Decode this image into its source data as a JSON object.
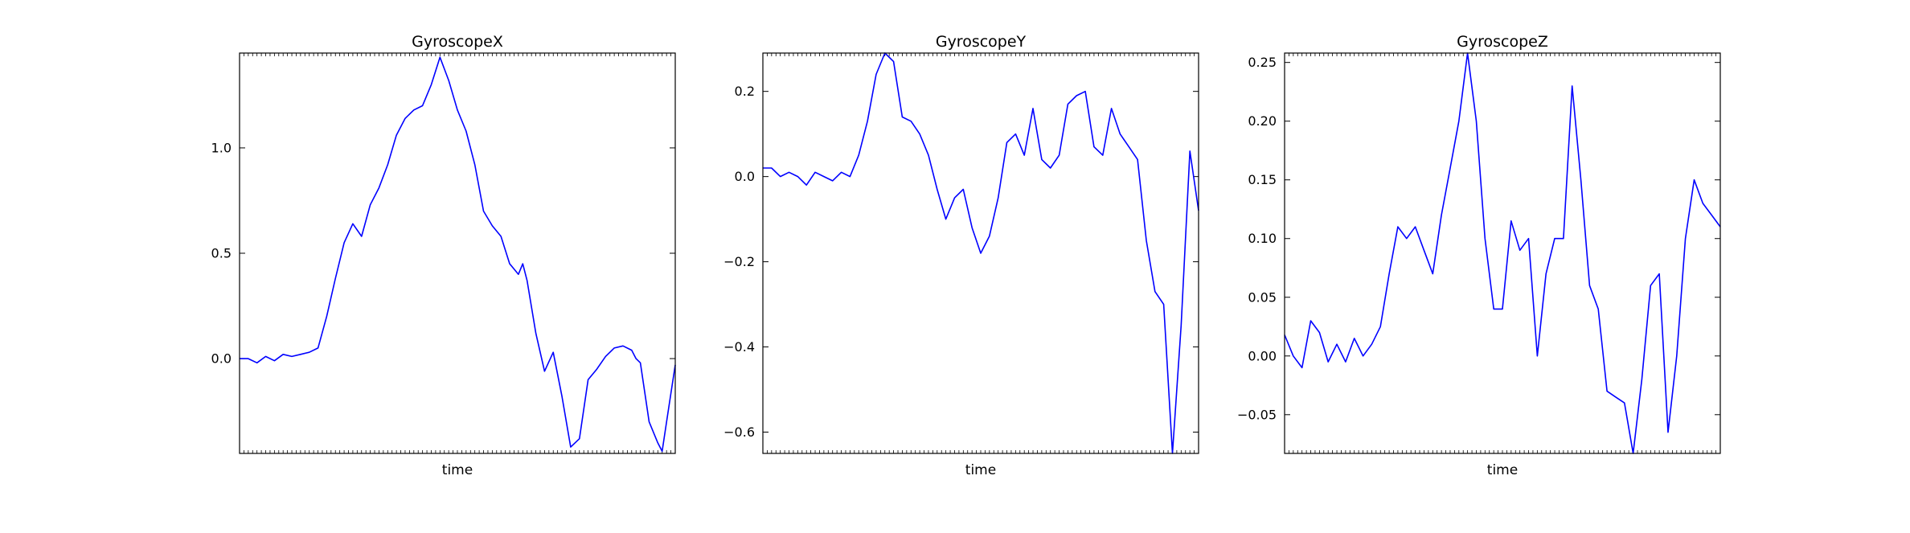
{
  "figure": {
    "background": "#ffffff",
    "line_color": "#0000ff"
  },
  "chart_data": [
    {
      "type": "line",
      "title": "GyroscopeX",
      "xlabel": "time",
      "ylabel": "",
      "ylim": [
        -0.45,
        1.45
      ],
      "yticks": [
        0.0,
        0.5,
        1.0
      ],
      "ytick_labels": [
        "0.0",
        "0.5",
        "1.0"
      ],
      "xlim": [
        0,
        100
      ],
      "series": [
        {
          "color": "#0000ff",
          "x": [
            0,
            2,
            4,
            6,
            8,
            10,
            12,
            14,
            16,
            18,
            20,
            22,
            24,
            26,
            28,
            30,
            32,
            34,
            36,
            38,
            40,
            42,
            44,
            46,
            48,
            50,
            52,
            54,
            56,
            58,
            60,
            62,
            64,
            65,
            66,
            68,
            70,
            72,
            74,
            76,
            78,
            80,
            82,
            84,
            86,
            88,
            90,
            91,
            92,
            94,
            96,
            97,
            98,
            100
          ],
          "y": [
            0.0,
            0.0,
            -0.02,
            0.01,
            -0.01,
            0.02,
            0.01,
            0.02,
            0.03,
            0.05,
            0.2,
            0.38,
            0.55,
            0.64,
            0.58,
            0.73,
            0.81,
            0.92,
            1.06,
            1.14,
            1.18,
            1.2,
            1.3,
            1.43,
            1.32,
            1.18,
            1.08,
            0.92,
            0.7,
            0.63,
            0.58,
            0.45,
            0.4,
            0.45,
            0.37,
            0.12,
            -0.06,
            0.03,
            -0.18,
            -0.42,
            -0.38,
            -0.1,
            -0.05,
            0.01,
            0.05,
            0.06,
            0.04,
            0.0,
            -0.02,
            -0.3,
            -0.4,
            -0.44,
            -0.3,
            -0.03
          ]
        }
      ]
    },
    {
      "type": "line",
      "title": "GyroscopeY",
      "xlabel": "time",
      "ylabel": "",
      "ylim": [
        -0.65,
        0.29
      ],
      "yticks": [
        -0.6,
        -0.4,
        -0.2,
        0.0,
        0.2
      ],
      "ytick_labels": [
        "−0.6",
        "−0.4",
        "−0.2",
        "0.0",
        "0.2"
      ],
      "xlim": [
        0,
        100
      ],
      "series": [
        {
          "color": "#0000ff",
          "x": [
            0,
            2,
            4,
            6,
            8,
            10,
            12,
            14,
            16,
            18,
            20,
            22,
            24,
            26,
            28,
            30,
            32,
            34,
            36,
            38,
            40,
            42,
            44,
            46,
            48,
            50,
            52,
            54,
            56,
            58,
            60,
            62,
            64,
            66,
            68,
            70,
            72,
            74,
            76,
            78,
            80,
            82,
            84,
            86,
            88,
            90,
            92,
            94,
            96,
            98,
            100
          ],
          "y": [
            0.02,
            0.02,
            0.0,
            0.01,
            0.0,
            -0.02,
            0.01,
            0.0,
            -0.01,
            0.01,
            0.0,
            0.05,
            0.13,
            0.24,
            0.29,
            0.27,
            0.14,
            0.13,
            0.1,
            0.05,
            -0.03,
            -0.1,
            -0.05,
            -0.03,
            -0.12,
            -0.18,
            -0.14,
            -0.05,
            0.08,
            0.1,
            0.05,
            0.16,
            0.04,
            0.02,
            0.05,
            0.17,
            0.19,
            0.2,
            0.07,
            0.05,
            0.16,
            0.1,
            0.07,
            0.04,
            -0.15,
            -0.27,
            -0.3,
            -0.65,
            -0.35,
            0.06,
            -0.08
          ]
        }
      ]
    },
    {
      "type": "line",
      "title": "GyroscopeZ",
      "xlabel": "time",
      "ylabel": "",
      "ylim": [
        -0.083,
        0.258
      ],
      "yticks": [
        -0.05,
        0.0,
        0.05,
        0.1,
        0.15,
        0.2,
        0.25
      ],
      "ytick_labels": [
        "−0.05",
        "0.00",
        "0.05",
        "0.10",
        "0.15",
        "0.20",
        "0.25"
      ],
      "xlim": [
        0,
        100
      ],
      "series": [
        {
          "color": "#0000ff",
          "x": [
            0,
            2,
            4,
            6,
            8,
            10,
            12,
            14,
            16,
            18,
            20,
            22,
            24,
            26,
            28,
            30,
            32,
            34,
            36,
            38,
            40,
            42,
            44,
            46,
            48,
            50,
            52,
            54,
            56,
            58,
            60,
            62,
            64,
            66,
            68,
            70,
            72,
            74,
            76,
            78,
            80,
            82,
            84,
            86,
            88,
            90,
            92,
            94,
            96,
            98,
            100
          ],
          "y": [
            0.018,
            0.0,
            -0.01,
            0.03,
            0.02,
            -0.005,
            0.01,
            -0.005,
            0.015,
            0.0,
            0.01,
            0.025,
            0.07,
            0.11,
            0.1,
            0.11,
            0.09,
            0.07,
            0.12,
            0.16,
            0.2,
            0.258,
            0.2,
            0.1,
            0.04,
            0.04,
            0.115,
            0.09,
            0.1,
            0.0,
            0.07,
            0.1,
            0.1,
            0.23,
            0.15,
            0.06,
            0.04,
            -0.03,
            -0.035,
            -0.04,
            -0.083,
            -0.02,
            0.06,
            0.07,
            -0.065,
            0.0,
            0.1,
            0.15,
            0.13,
            0.12,
            0.11
          ]
        }
      ]
    }
  ]
}
